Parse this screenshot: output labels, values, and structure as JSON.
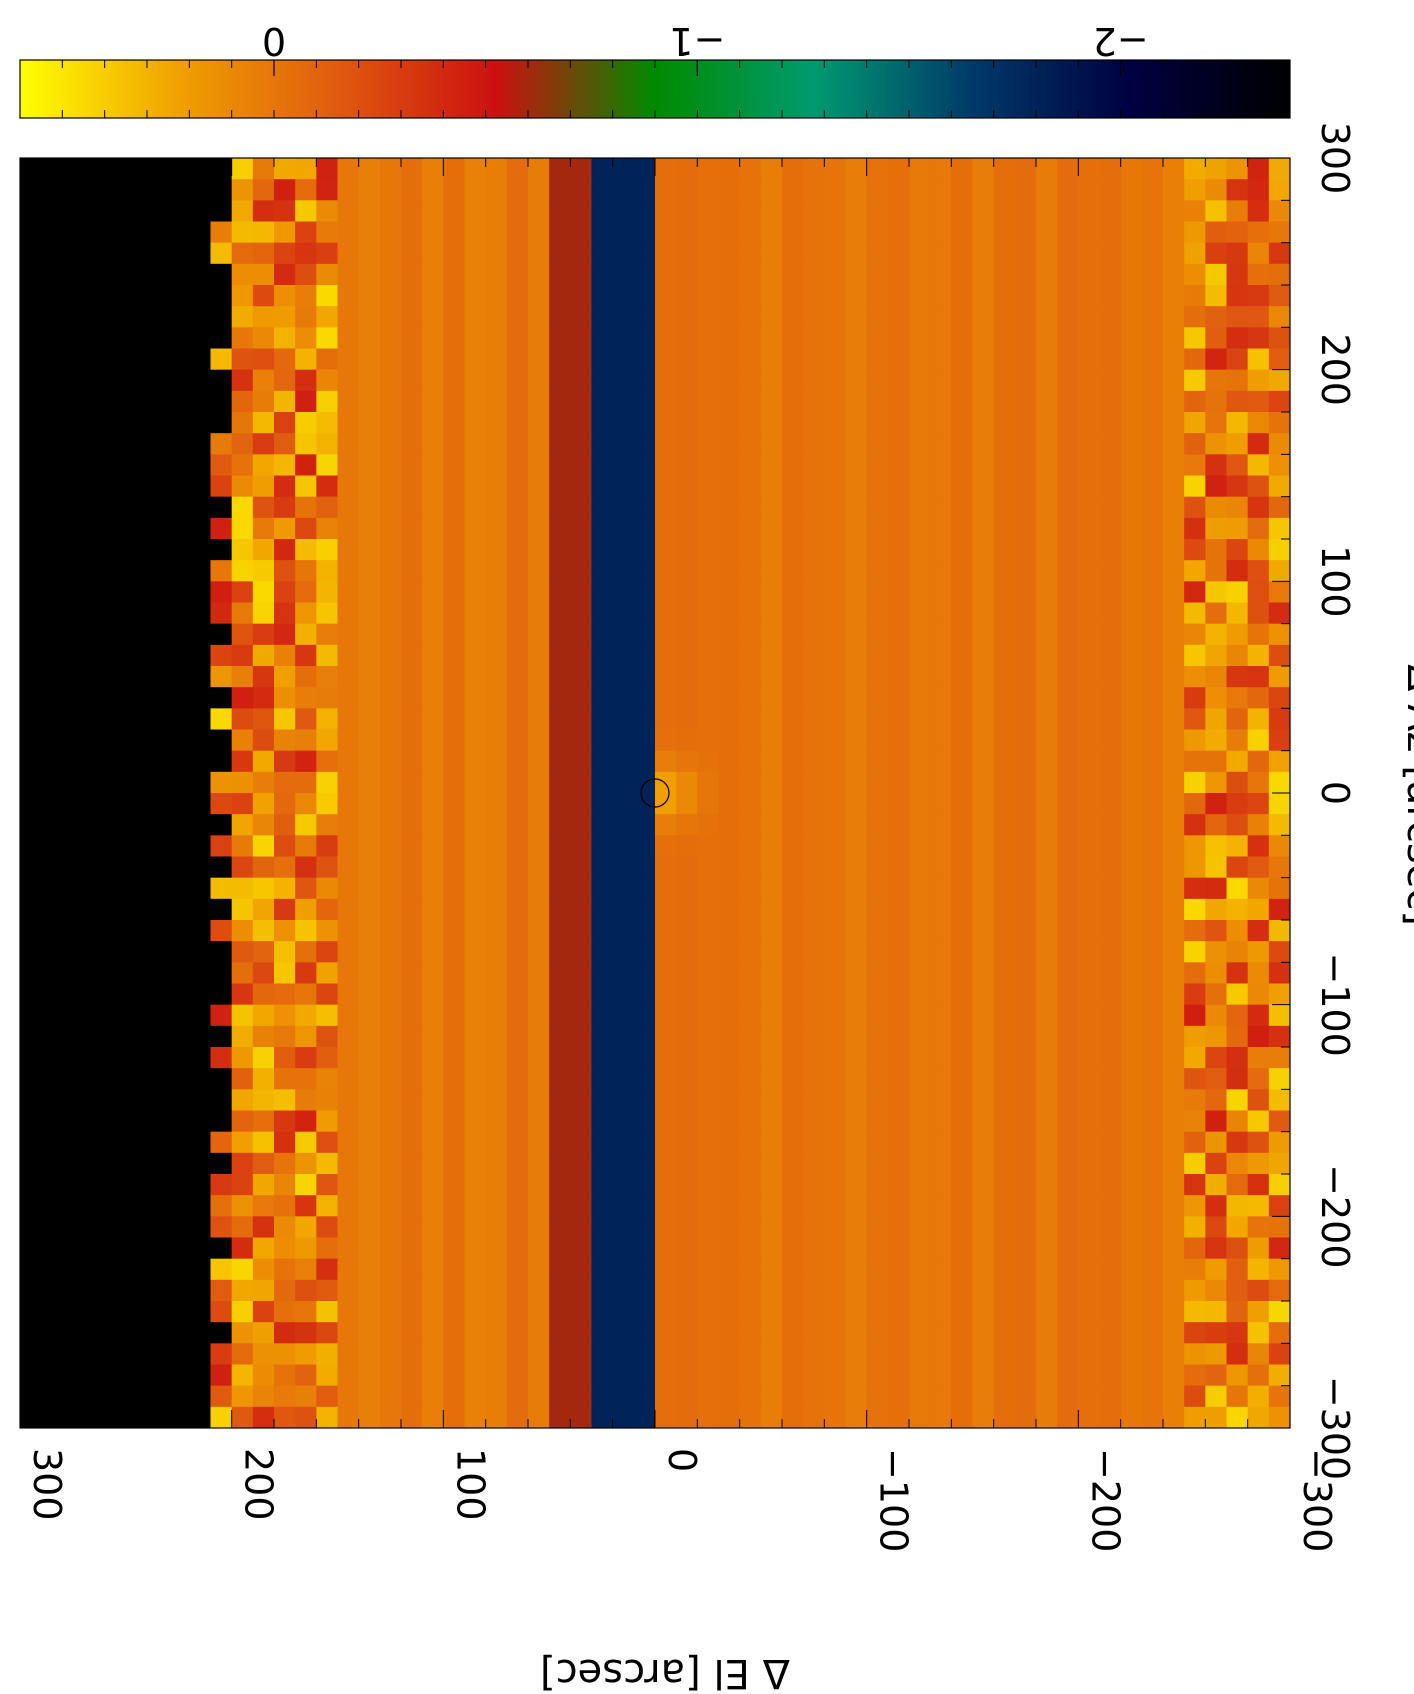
{
  "chart_data": {
    "type": "heatmap",
    "orientation": "rotated 90 degrees clockwise",
    "xlabel": "Δ Az [arcsec]",
    "ylabel": "Δ El [arcsec]",
    "xlim": [
      -300,
      300
    ],
    "ylim": [
      -300,
      300
    ],
    "x_ticks": [
      300,
      200,
      100,
      0,
      -100,
      -200,
      -300
    ],
    "y_ticks": [
      300,
      200,
      100,
      0,
      -100,
      -200,
      -300
    ],
    "x_tick_labels": [
      "300",
      "200",
      "100",
      "0",
      "−100",
      "−200",
      "−300"
    ],
    "y_tick_labels": [
      "300",
      "200",
      "100",
      "0",
      "−100",
      "−200",
      "−300"
    ],
    "colorbar": {
      "range": [
        -2.4,
        0.6
      ],
      "ticks": [
        0,
        -1,
        -2
      ],
      "tick_labels": [
        "0",
        "−1",
        "−2"
      ],
      "colors": [
        "#ffff00",
        "#f0a000",
        "#e05a10",
        "#cc1010",
        "#008a00",
        "#009a70",
        "#003a6a",
        "#000040",
        "#000000"
      ]
    },
    "source_marker": {
      "az": 0,
      "el": 0,
      "shape": "circle"
    },
    "features": [
      {
        "az_range": [
          -300,
          300
        ],
        "el_range": [
          205,
          300
        ],
        "value": -2.4,
        "description": "dark region"
      },
      {
        "az_range": [
          -300,
          300
        ],
        "el_range": [
          0,
          45
        ],
        "value": -1.8,
        "description": "dark horizontal stripes"
      },
      {
        "az": 0,
        "el": -5,
        "value": 0.3,
        "description": "bright peak"
      },
      {
        "az_range": [
          -300,
          300
        ],
        "el_range": [
          -300,
          205
        ],
        "value": 0.0,
        "description": "background level"
      }
    ]
  }
}
